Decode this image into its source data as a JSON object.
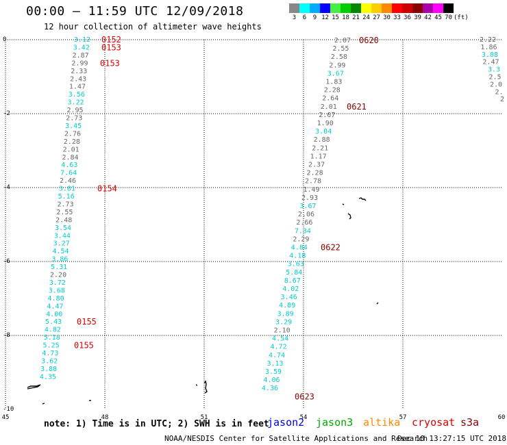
{
  "header": {
    "title": "00:00 – 11:59 UTC 12/09/2018",
    "subtitle": "12 hour collection of altimeter wave heights"
  },
  "height_scale": {
    "labels": [
      "3",
      "6",
      "9",
      "12",
      "15",
      "18",
      "21",
      "24",
      "27",
      "30",
      "33",
      "36",
      "39",
      "42",
      "45",
      "70",
      "(ft)"
    ],
    "colors": [
      "#888888",
      "#00ffff",
      "#00aaff",
      "#0000ff",
      "#44ee44",
      "#00cc00",
      "#008800",
      "#ffff00",
      "#ffcc00",
      "#ff8800",
      "#ff0000",
      "#cc0000",
      "#880000",
      "#aa00aa",
      "#ff00ff",
      "#000000"
    ]
  },
  "axes": {
    "x_labels": [
      "45",
      "48",
      "51",
      "54",
      "57",
      "60"
    ],
    "y_labels": [
      "0",
      "-2",
      "-4",
      "-6",
      "-8",
      "-10"
    ]
  },
  "footer": {
    "note": "note: 1) Time is in UTC; 2) SWH is in feet",
    "satellites": [
      {
        "name": "jason2",
        "color": "#0000dd"
      },
      {
        "name": "jason3",
        "color": "#00aa00"
      },
      {
        "name": "altika",
        "color": "#ff8800"
      },
      {
        "name": "cryosat",
        "color": "#dd0000"
      },
      {
        "name": "s3a",
        "color": "#880000"
      }
    ],
    "credit": "NOAA/NESDIS Center for Satellite Applications and Research",
    "timestamp": "Dec 10 13:27:15 UTC 2018"
  },
  "tracks": [
    {
      "id": "track1",
      "times": [
        {
          "label": "0152",
          "row": 0,
          "color": "#dd0000"
        },
        {
          "label": "0153",
          "row": 1,
          "color": "#dd0000"
        },
        {
          "label": "0153",
          "row": 3,
          "color": "#dd0000"
        },
        {
          "label": "0154",
          "row": 19,
          "color": "#dd0000"
        },
        {
          "label": "0155",
          "row": 36,
          "color": "#dd0000"
        },
        {
          "label": "0155",
          "row": 39,
          "color": "#dd0000"
        }
      ],
      "values": [
        {
          "v": "3.12",
          "c": "#00cccc"
        },
        {
          "v": "3.42",
          "c": "#00cccc"
        },
        {
          "v": "2.87",
          "c": "#666666"
        },
        {
          "v": "2.99",
          "c": "#666666"
        },
        {
          "v": "2.33",
          "c": "#666666"
        },
        {
          "v": "2.43",
          "c": "#666666"
        },
        {
          "v": "1.47",
          "c": "#666666"
        },
        {
          "v": "3.56",
          "c": "#00cccc"
        },
        {
          "v": "3.22",
          "c": "#00cccc"
        },
        {
          "v": "2.95",
          "c": "#666666"
        },
        {
          "v": "2.73",
          "c": "#666666"
        },
        {
          "v": "3.45",
          "c": "#00cccc"
        },
        {
          "v": "2.76",
          "c": "#666666"
        },
        {
          "v": "2.28",
          "c": "#666666"
        },
        {
          "v": "2.01",
          "c": "#666666"
        },
        {
          "v": "2.84",
          "c": "#666666"
        },
        {
          "v": "4.63",
          "c": "#00cccc"
        },
        {
          "v": "7.64",
          "c": "#00cccc"
        },
        {
          "v": "2.46",
          "c": "#666666"
        },
        {
          "v": "3.81",
          "c": "#00cccc"
        },
        {
          "v": "5.16",
          "c": "#00cccc"
        },
        {
          "v": "2.73",
          "c": "#666666"
        },
        {
          "v": "2.55",
          "c": "#666666"
        },
        {
          "v": "2.48",
          "c": "#666666"
        },
        {
          "v": "3.54",
          "c": "#00cccc"
        },
        {
          "v": "3.44",
          "c": "#00cccc"
        },
        {
          "v": "3.27",
          "c": "#00cccc"
        },
        {
          "v": "4.54",
          "c": "#00cccc"
        },
        {
          "v": "3.86",
          "c": "#00cccc"
        },
        {
          "v": "5.31",
          "c": "#00cccc"
        },
        {
          "v": "2.20",
          "c": "#666666"
        },
        {
          "v": "3.72",
          "c": "#00cccc"
        },
        {
          "v": "3.68",
          "c": "#00cccc"
        },
        {
          "v": "4.80",
          "c": "#00cccc"
        },
        {
          "v": "4.47",
          "c": "#00cccc"
        },
        {
          "v": "4.00",
          "c": "#00cccc"
        },
        {
          "v": "5.43",
          "c": "#00cccc"
        },
        {
          "v": "4.82",
          "c": "#00cccc"
        },
        {
          "v": "5.18",
          "c": "#00cccc"
        },
        {
          "v": "5.25",
          "c": "#00cccc"
        },
        {
          "v": "4.73",
          "c": "#00cccc"
        },
        {
          "v": "3.62",
          "c": "#00cccc"
        },
        {
          "v": "3.88",
          "c": "#00cccc"
        },
        {
          "v": "4.35",
          "c": "#00cccc"
        }
      ]
    },
    {
      "id": "track2",
      "times": [
        {
          "label": "0620",
          "row": 0,
          "color": "#880000"
        },
        {
          "label": "0621",
          "row": 8,
          "color": "#880000"
        },
        {
          "label": "0622",
          "row": 25,
          "color": "#880000"
        },
        {
          "label": "0623",
          "row": 43,
          "color": "#880000"
        }
      ],
      "values": [
        {
          "v": "2.07",
          "c": "#666666"
        },
        {
          "v": "2.55",
          "c": "#666666"
        },
        {
          "v": "2.58",
          "c": "#666666"
        },
        {
          "v": "2.99",
          "c": "#666666"
        },
        {
          "v": "3.67",
          "c": "#00cccc"
        },
        {
          "v": "1.83",
          "c": "#666666"
        },
        {
          "v": "2.28",
          "c": "#666666"
        },
        {
          "v": "2.64",
          "c": "#666666"
        },
        {
          "v": "2.01",
          "c": "#666666"
        },
        {
          "v": "2.67",
          "c": "#666666"
        },
        {
          "v": "1.90",
          "c": "#666666"
        },
        {
          "v": "3.04",
          "c": "#00cccc"
        },
        {
          "v": "2.88",
          "c": "#666666"
        },
        {
          "v": "2.21",
          "c": "#666666"
        },
        {
          "v": "1.17",
          "c": "#666666"
        },
        {
          "v": "2.37",
          "c": "#666666"
        },
        {
          "v": "2.28",
          "c": "#666666"
        },
        {
          "v": "2.78",
          "c": "#666666"
        },
        {
          "v": "1.49",
          "c": "#666666"
        },
        {
          "v": "2.93",
          "c": "#666666"
        },
        {
          "v": "3.67",
          "c": "#00cccc"
        },
        {
          "v": "2.06",
          "c": "#666666"
        },
        {
          "v": "2.66",
          "c": "#666666"
        },
        {
          "v": "7.34",
          "c": "#00cccc"
        },
        {
          "v": "2.29",
          "c": "#666666"
        },
        {
          "v": "4.84",
          "c": "#00cccc"
        },
        {
          "v": "4.18",
          "c": "#00cccc"
        },
        {
          "v": "3.63",
          "c": "#00cccc"
        },
        {
          "v": "5.84",
          "c": "#00cccc"
        },
        {
          "v": "8.67",
          "c": "#00cccc"
        },
        {
          "v": "4.02",
          "c": "#00cccc"
        },
        {
          "v": "3.46",
          "c": "#00cccc"
        },
        {
          "v": "4.89",
          "c": "#00cccc"
        },
        {
          "v": "3.89",
          "c": "#00cccc"
        },
        {
          "v": "3.29",
          "c": "#00cccc"
        },
        {
          "v": "2.10",
          "c": "#666666"
        },
        {
          "v": "4.54",
          "c": "#00cccc"
        },
        {
          "v": "4.72",
          "c": "#00cccc"
        },
        {
          "v": "4.74",
          "c": "#00cccc"
        },
        {
          "v": "3.13",
          "c": "#00cccc"
        },
        {
          "v": "3.59",
          "c": "#00cccc"
        },
        {
          "v": "4.06",
          "c": "#00cccc"
        },
        {
          "v": "4.36",
          "c": "#00cccc"
        }
      ]
    },
    {
      "id": "track3",
      "times": [],
      "values": [
        {
          "v": "2.22",
          "c": "#666666"
        },
        {
          "v": "1.86",
          "c": "#666666"
        },
        {
          "v": "3.08",
          "c": "#00cccc"
        },
        {
          "v": "2.47",
          "c": "#666666"
        },
        {
          "v": "3.3",
          "c": "#00cccc"
        },
        {
          "v": "2.5",
          "c": "#666666"
        },
        {
          "v": "2.0",
          "c": "#666666"
        },
        {
          "v": "2.",
          "c": "#666666"
        },
        {
          "v": "2",
          "c": "#666666"
        }
      ]
    }
  ]
}
